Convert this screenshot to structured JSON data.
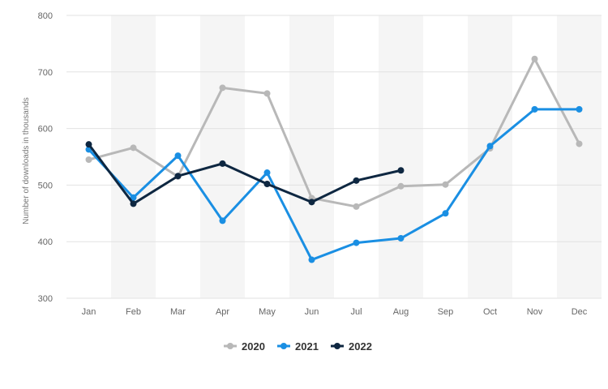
{
  "chart_data": {
    "type": "line",
    "title": "",
    "xlabel": "",
    "ylabel": "Number of downloads in thousands",
    "categories": [
      "Jan",
      "Feb",
      "Mar",
      "Apr",
      "May",
      "Jun",
      "Jul",
      "Aug",
      "Sep",
      "Oct",
      "Nov",
      "Dec"
    ],
    "ylim": [
      300,
      800
    ],
    "yticks": [
      300,
      400,
      500,
      600,
      700,
      800
    ],
    "grid": "horizontal",
    "band_shading": "alternate columns",
    "legend_position": "bottom-center",
    "series": [
      {
        "name": "2020",
        "color": "#b8b8b8",
        "values": [
          545,
          566,
          515,
          672,
          662,
          477,
          462,
          498,
          501,
          565,
          723,
          573
        ]
      },
      {
        "name": "2021",
        "color": "#1a8fe3",
        "values": [
          563,
          478,
          552,
          437,
          522,
          368,
          398,
          406,
          450,
          569,
          634,
          634
        ]
      },
      {
        "name": "2022",
        "color": "#0e2741",
        "values": [
          572,
          467,
          516,
          538,
          502,
          470,
          508,
          526,
          null,
          null,
          null,
          null
        ]
      }
    ]
  }
}
